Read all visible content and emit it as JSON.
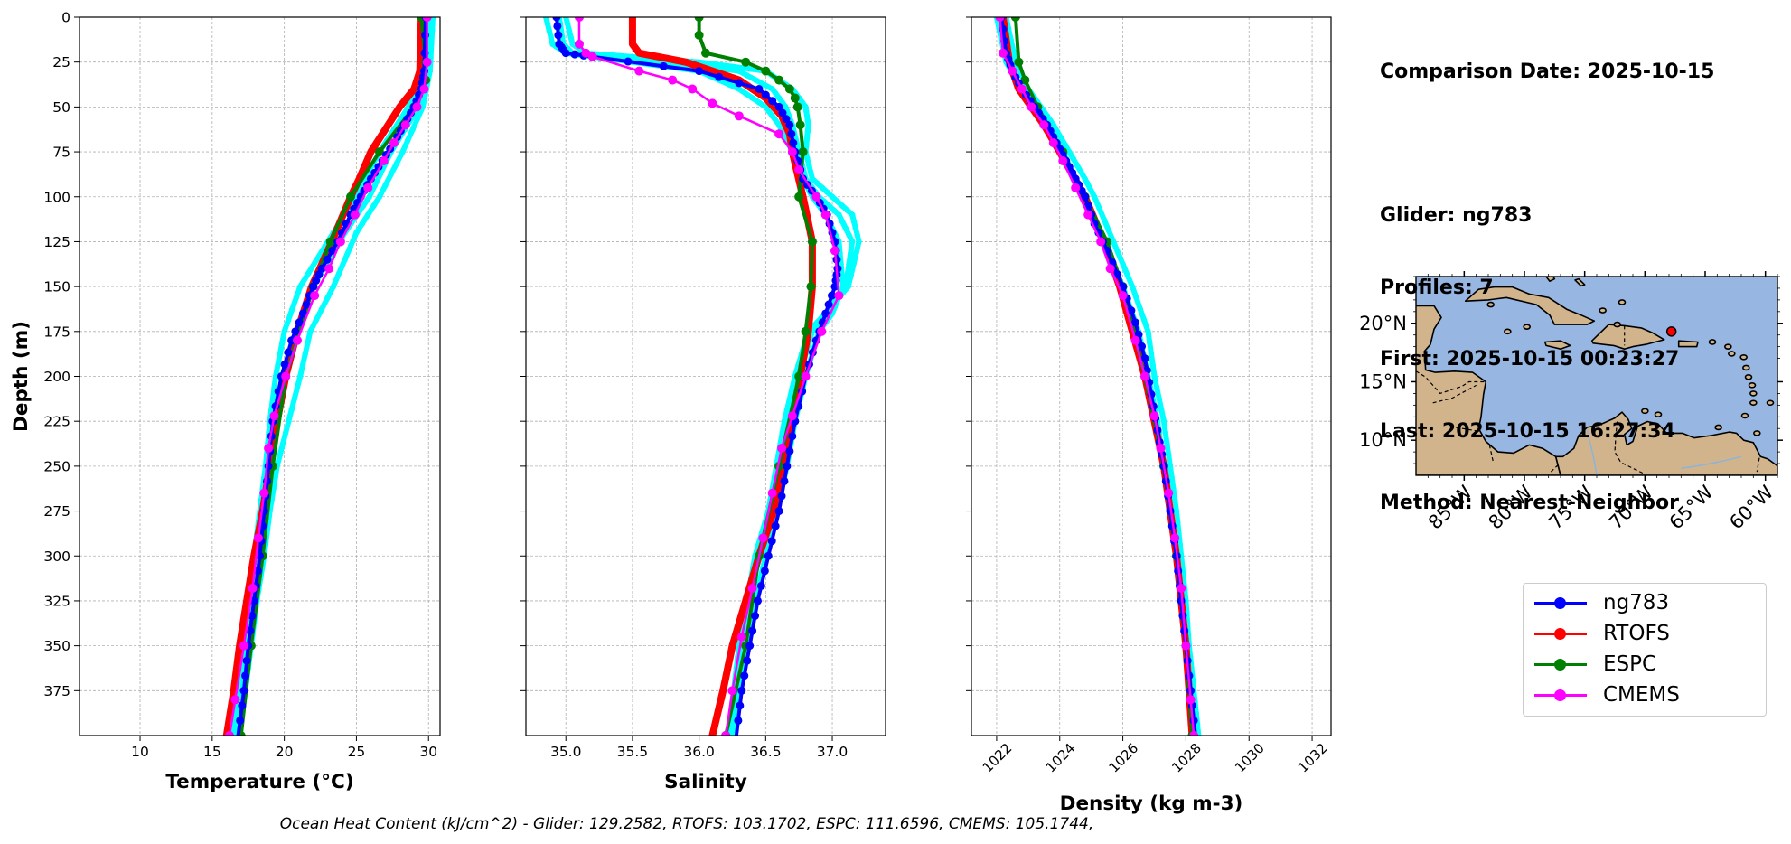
{
  "info": {
    "comparison_date": "Comparison Date: 2025-10-15",
    "glider": "Glider: ng783",
    "profiles": "Profiles: 7",
    "first": "First: 2025-10-15 00:23:27",
    "last": "Last: 2025-10-15 16:27:34",
    "method": "Method: Nearest-Neighbor"
  },
  "footer": "Ocean Heat Content (kJ/cm^2) - Glider: 129.2582,  RTOFS: 103.1702,  ESPC: 111.6596,  CMEMS: 105.1744,",
  "colors": {
    "glider": "#0000ff",
    "glider_profiles": "#00ffff",
    "rtofs": "#ff0000",
    "espc": "#008000",
    "cmems": "#ff00ff",
    "ocean": "#97b6e1",
    "land": "#d2b48c"
  },
  "legend": [
    {
      "name": "ng783",
      "color": "#0000ff"
    },
    {
      "name": "RTOFS",
      "color": "#ff0000"
    },
    {
      "name": "ESPC",
      "color": "#008000"
    },
    {
      "name": "CMEMS",
      "color": "#ff00ff"
    }
  ],
  "chart_data": [
    {
      "type": "line",
      "xlabel": "Temperature (°C)",
      "ylabel": "Depth (m)",
      "xlim": [
        5.8,
        30.8
      ],
      "ylim": [
        400,
        0
      ],
      "xticks": [
        "10",
        "15",
        "20",
        "25",
        "30"
      ],
      "yticks": [
        "0",
        "25",
        "50",
        "75",
        "100",
        "125",
        "150",
        "175",
        "200",
        "225",
        "250",
        "275",
        "300",
        "325",
        "350",
        "375"
      ],
      "grid": true,
      "glider_profiles": [
        {
          "depth": [
            0,
            30,
            50,
            75,
            100,
            120,
            150,
            175,
            200,
            225,
            250,
            275,
            300,
            325,
            350,
            375,
            400
          ],
          "values": [
            30.1,
            29.9,
            29.3,
            27.4,
            25.9,
            24.2,
            22.0,
            20.8,
            20.1,
            19.5,
            19.0,
            18.6,
            18.3,
            17.8,
            17.4,
            17.1,
            16.6
          ]
        },
        {
          "depth": [
            0,
            30,
            50,
            75,
            100,
            120,
            150,
            175,
            200,
            225,
            250,
            275,
            300,
            325,
            350,
            375,
            400
          ],
          "values": [
            30.0,
            29.6,
            28.6,
            26.6,
            24.9,
            23.4,
            21.1,
            20.0,
            19.4,
            19.0,
            18.7,
            18.3,
            17.9,
            17.5,
            17.1,
            16.7,
            16.3
          ]
        },
        {
          "depth": [
            0,
            30,
            50,
            75,
            100,
            120,
            150,
            175,
            200,
            225,
            250,
            275,
            300,
            325,
            350,
            375,
            400
          ],
          "values": [
            30.3,
            30.1,
            29.6,
            28.2,
            26.6,
            25.0,
            23.4,
            21.8,
            21.1,
            20.3,
            19.5,
            19.0,
            18.6,
            18.1,
            17.7,
            17.3,
            16.9
          ]
        }
      ],
      "series": [
        {
          "name": "ng783",
          "depth": [
            0,
            30,
            40,
            50,
            60,
            70,
            80,
            90,
            100,
            110,
            125,
            140,
            150,
            165,
            180,
            200,
            225,
            250,
            275,
            300,
            325,
            350,
            375,
            400
          ],
          "values": [
            29.8,
            29.7,
            29.5,
            29.0,
            28.3,
            27.6,
            26.8,
            26.0,
            25.3,
            24.6,
            23.7,
            22.6,
            22.0,
            21.3,
            20.5,
            19.8,
            19.2,
            18.9,
            18.6,
            18.3,
            17.9,
            17.5,
            17.2,
            16.8
          ]
        },
        {
          "name": "RTOFS",
          "depth": [
            0,
            30,
            40,
            50,
            60,
            75,
            90,
            100,
            125,
            150,
            175,
            200,
            225,
            250,
            275,
            300,
            325,
            350,
            375,
            400
          ],
          "values": [
            29.5,
            29.4,
            29.0,
            28.0,
            27.2,
            26.0,
            25.2,
            24.6,
            23.3,
            21.9,
            20.9,
            20.1,
            19.5,
            19.0,
            18.5,
            17.9,
            17.4,
            16.9,
            16.5,
            16.0
          ]
        },
        {
          "name": "ESPC",
          "depth": [
            0,
            25,
            35,
            50,
            75,
            100,
            125,
            150,
            200,
            250,
            300,
            350,
            400
          ],
          "values": [
            29.5,
            29.8,
            29.8,
            29.0,
            26.6,
            24.6,
            23.2,
            22.0,
            20.1,
            19.2,
            18.5,
            17.7,
            17.0
          ]
        },
        {
          "name": "CMEMS",
          "depth": [
            0,
            25,
            40,
            50,
            60,
            70,
            80,
            95,
            110,
            125,
            140,
            155,
            180,
            200,
            222,
            240,
            265,
            290,
            318,
            350,
            380,
            400
          ],
          "values": [
            29.9,
            29.9,
            29.7,
            29.2,
            28.4,
            27.6,
            26.9,
            25.8,
            24.9,
            23.9,
            23.1,
            22.1,
            20.9,
            20.1,
            19.3,
            18.9,
            18.6,
            18.2,
            17.8,
            17.2,
            16.6,
            16.2
          ]
        }
      ]
    },
    {
      "type": "line",
      "xlabel": "Salinity",
      "ylabel": "",
      "xlim": [
        34.7,
        37.4
      ],
      "ylim": [
        400,
        0
      ],
      "xticks": [
        "35.0",
        "35.5",
        "36.0",
        "36.5",
        "37.0"
      ],
      "grid": true,
      "glider_profiles": [
        {
          "depth": [
            0,
            15,
            20,
            25,
            30,
            40,
            50,
            60,
            75,
            90,
            100,
            110,
            125,
            150,
            165,
            175,
            200,
            225,
            250,
            275,
            300,
            325,
            350,
            375,
            400
          ],
          "values": [
            34.95,
            34.98,
            35.05,
            35.8,
            36.3,
            36.55,
            36.65,
            36.7,
            36.75,
            36.8,
            36.9,
            37.05,
            37.15,
            37.1,
            36.95,
            36.85,
            36.75,
            36.68,
            36.62,
            36.55,
            36.45,
            36.38,
            36.32,
            36.28,
            36.25
          ]
        },
        {
          "depth": [
            0,
            15,
            20,
            25,
            30,
            40,
            50,
            60,
            75,
            90,
            100,
            110,
            125,
            150,
            165,
            175,
            200,
            225,
            250,
            275,
            300,
            325,
            350,
            375,
            400
          ],
          "values": [
            34.85,
            34.9,
            35.0,
            35.5,
            36.0,
            36.3,
            36.5,
            36.6,
            36.7,
            36.78,
            36.85,
            36.95,
            37.05,
            37.08,
            37.0,
            36.9,
            36.8,
            36.72,
            36.66,
            36.58,
            36.5,
            36.42,
            36.35,
            36.3,
            36.27
          ]
        },
        {
          "depth": [
            0,
            15,
            20,
            25,
            30,
            40,
            50,
            60,
            75,
            90,
            100,
            110,
            125,
            150,
            165,
            175,
            200,
            225,
            250,
            275,
            300,
            325,
            350,
            375,
            400
          ],
          "values": [
            35.0,
            35.05,
            35.15,
            36.0,
            36.5,
            36.7,
            36.8,
            36.82,
            36.8,
            36.85,
            37.0,
            37.15,
            37.2,
            37.12,
            36.95,
            36.82,
            36.72,
            36.64,
            36.58,
            36.52,
            36.42,
            36.36,
            36.3,
            36.26,
            36.22
          ]
        }
      ],
      "series": [
        {
          "name": "ng783",
          "depth": [
            0,
            15,
            20,
            22,
            30,
            40,
            50,
            60,
            75,
            90,
            100,
            110,
            125,
            140,
            150,
            165,
            180,
            200,
            225,
            250,
            275,
            300,
            325,
            350,
            375,
            400
          ],
          "values": [
            34.93,
            34.95,
            35.0,
            35.2,
            36.0,
            36.45,
            36.6,
            36.68,
            36.72,
            36.78,
            36.88,
            36.96,
            37.02,
            37.04,
            37.02,
            36.95,
            36.88,
            36.8,
            36.72,
            36.66,
            36.6,
            36.52,
            36.44,
            36.38,
            36.32,
            36.28
          ]
        },
        {
          "name": "RTOFS",
          "depth": [
            0,
            15,
            20,
            25,
            35,
            45,
            55,
            65,
            75,
            100,
            125,
            150,
            175,
            200,
            225,
            250,
            275,
            300,
            325,
            350,
            375,
            400
          ],
          "values": [
            35.5,
            35.5,
            35.55,
            35.9,
            36.3,
            36.5,
            36.62,
            36.68,
            36.7,
            36.78,
            36.85,
            36.85,
            36.82,
            36.76,
            36.7,
            36.63,
            36.56,
            36.45,
            36.35,
            36.25,
            36.18,
            36.1
          ]
        },
        {
          "name": "ESPC",
          "depth": [
            0,
            10,
            20,
            25,
            30,
            35,
            40,
            45,
            50,
            60,
            75,
            100,
            125,
            150,
            175,
            200,
            250,
            300,
            350,
            400
          ],
          "values": [
            36.0,
            36.0,
            36.05,
            36.35,
            36.5,
            36.6,
            36.68,
            36.72,
            36.74,
            36.76,
            36.78,
            36.75,
            36.85,
            36.84,
            36.8,
            36.75,
            36.6,
            36.45,
            36.35,
            36.2
          ]
        },
        {
          "name": "CMEMS",
          "depth": [
            0,
            15,
            20,
            22,
            30,
            35,
            40,
            48,
            55,
            65,
            75,
            85,
            100,
            110,
            130,
            155,
            175,
            200,
            222,
            240,
            265,
            290,
            318,
            345,
            375,
            400
          ],
          "values": [
            35.1,
            35.1,
            35.15,
            35.2,
            35.55,
            35.8,
            35.95,
            36.1,
            36.3,
            36.6,
            36.7,
            36.75,
            36.88,
            36.95,
            37.02,
            37.05,
            36.92,
            36.8,
            36.7,
            36.62,
            36.55,
            36.48,
            36.4,
            36.32,
            36.25,
            36.2
          ]
        }
      ]
    },
    {
      "type": "line",
      "xlabel": "Density (kg m-3)",
      "ylabel": "",
      "xlim": [
        1021.2,
        1032.6
      ],
      "ylim": [
        400,
        0
      ],
      "xticks": [
        "1022",
        "1024",
        "1026",
        "1028",
        "1030",
        "1032"
      ],
      "grid": true,
      "glider_profiles": [
        {
          "depth": [
            0,
            25,
            40,
            50,
            60,
            75,
            90,
            100,
            125,
            150,
            175,
            200,
            225,
            250,
            275,
            300,
            325,
            350,
            375,
            400
          ],
          "values": [
            1022.0,
            1022.3,
            1022.8,
            1023.2,
            1023.6,
            1024.1,
            1024.5,
            1024.8,
            1025.4,
            1026.0,
            1026.5,
            1026.8,
            1027.1,
            1027.3,
            1027.5,
            1027.7,
            1027.9,
            1028.0,
            1028.15,
            1028.3
          ]
        },
        {
          "depth": [
            0,
            25,
            40,
            50,
            60,
            75,
            90,
            100,
            125,
            150,
            175,
            200,
            225,
            250,
            275,
            300,
            325,
            350,
            375,
            400
          ],
          "values": [
            1022.3,
            1022.6,
            1023.0,
            1023.4,
            1023.8,
            1024.3,
            1024.8,
            1025.1,
            1025.7,
            1026.3,
            1026.8,
            1027.0,
            1027.3,
            1027.5,
            1027.7,
            1027.85,
            1028.0,
            1028.1,
            1028.25,
            1028.4
          ]
        }
      ],
      "series": [
        {
          "name": "ng783",
          "depth": [
            0,
            20,
            30,
            40,
            50,
            60,
            70,
            80,
            90,
            100,
            115,
            130,
            150,
            170,
            190,
            210,
            230,
            250,
            275,
            300,
            325,
            350,
            375,
            400
          ],
          "values": [
            1022.15,
            1022.3,
            1022.5,
            1022.8,
            1023.2,
            1023.6,
            1023.9,
            1024.2,
            1024.5,
            1024.8,
            1025.1,
            1025.5,
            1026.0,
            1026.4,
            1026.7,
            1026.9,
            1027.1,
            1027.3,
            1027.5,
            1027.7,
            1027.85,
            1028.0,
            1028.15,
            1028.3
          ]
        },
        {
          "name": "RTOFS",
          "depth": [
            0,
            25,
            40,
            50,
            60,
            75,
            100,
            125,
            150,
            175,
            200,
            225,
            250,
            275,
            300,
            325,
            350,
            375,
            400
          ],
          "values": [
            1022.2,
            1022.4,
            1022.7,
            1023.1,
            1023.5,
            1024.0,
            1024.8,
            1025.4,
            1025.9,
            1026.3,
            1026.7,
            1027.0,
            1027.3,
            1027.5,
            1027.7,
            1027.85,
            1028.0,
            1028.1,
            1028.2
          ]
        },
        {
          "name": "ESPC",
          "depth": [
            0,
            25,
            35,
            50,
            75,
            100,
            125,
            150,
            200,
            250,
            300,
            350,
            400
          ],
          "values": [
            1022.6,
            1022.7,
            1022.9,
            1023.3,
            1024.1,
            1024.8,
            1025.5,
            1026.0,
            1026.7,
            1027.3,
            1027.7,
            1028.0,
            1028.2
          ]
        },
        {
          "name": "CMEMS",
          "depth": [
            0,
            20,
            30,
            40,
            50,
            60,
            70,
            80,
            95,
            110,
            125,
            140,
            155,
            180,
            200,
            222,
            240,
            265,
            290,
            318,
            350,
            380,
            400
          ],
          "values": [
            1022.1,
            1022.2,
            1022.5,
            1022.8,
            1023.1,
            1023.5,
            1023.8,
            1024.1,
            1024.5,
            1024.9,
            1025.3,
            1025.6,
            1026.0,
            1026.4,
            1026.7,
            1027.0,
            1027.2,
            1027.45,
            1027.65,
            1027.85,
            1028.0,
            1028.15,
            1028.25
          ]
        }
      ]
    }
  ],
  "map": {
    "lon_ticks": [
      "85°W",
      "80°W",
      "75°W",
      "70°W",
      "65°W",
      "60°W"
    ],
    "lat_ticks": [
      "20°N",
      "15°N",
      "10°N"
    ],
    "lon_range": [
      -89,
      -59
    ],
    "lat_range": [
      7,
      24
    ],
    "lon_values": [
      -85,
      -80,
      -75,
      -70,
      -65,
      -60
    ],
    "lat_values": [
      20,
      15,
      10
    ],
    "glider_position": {
      "lon": -67.8,
      "lat": 19.3
    }
  }
}
